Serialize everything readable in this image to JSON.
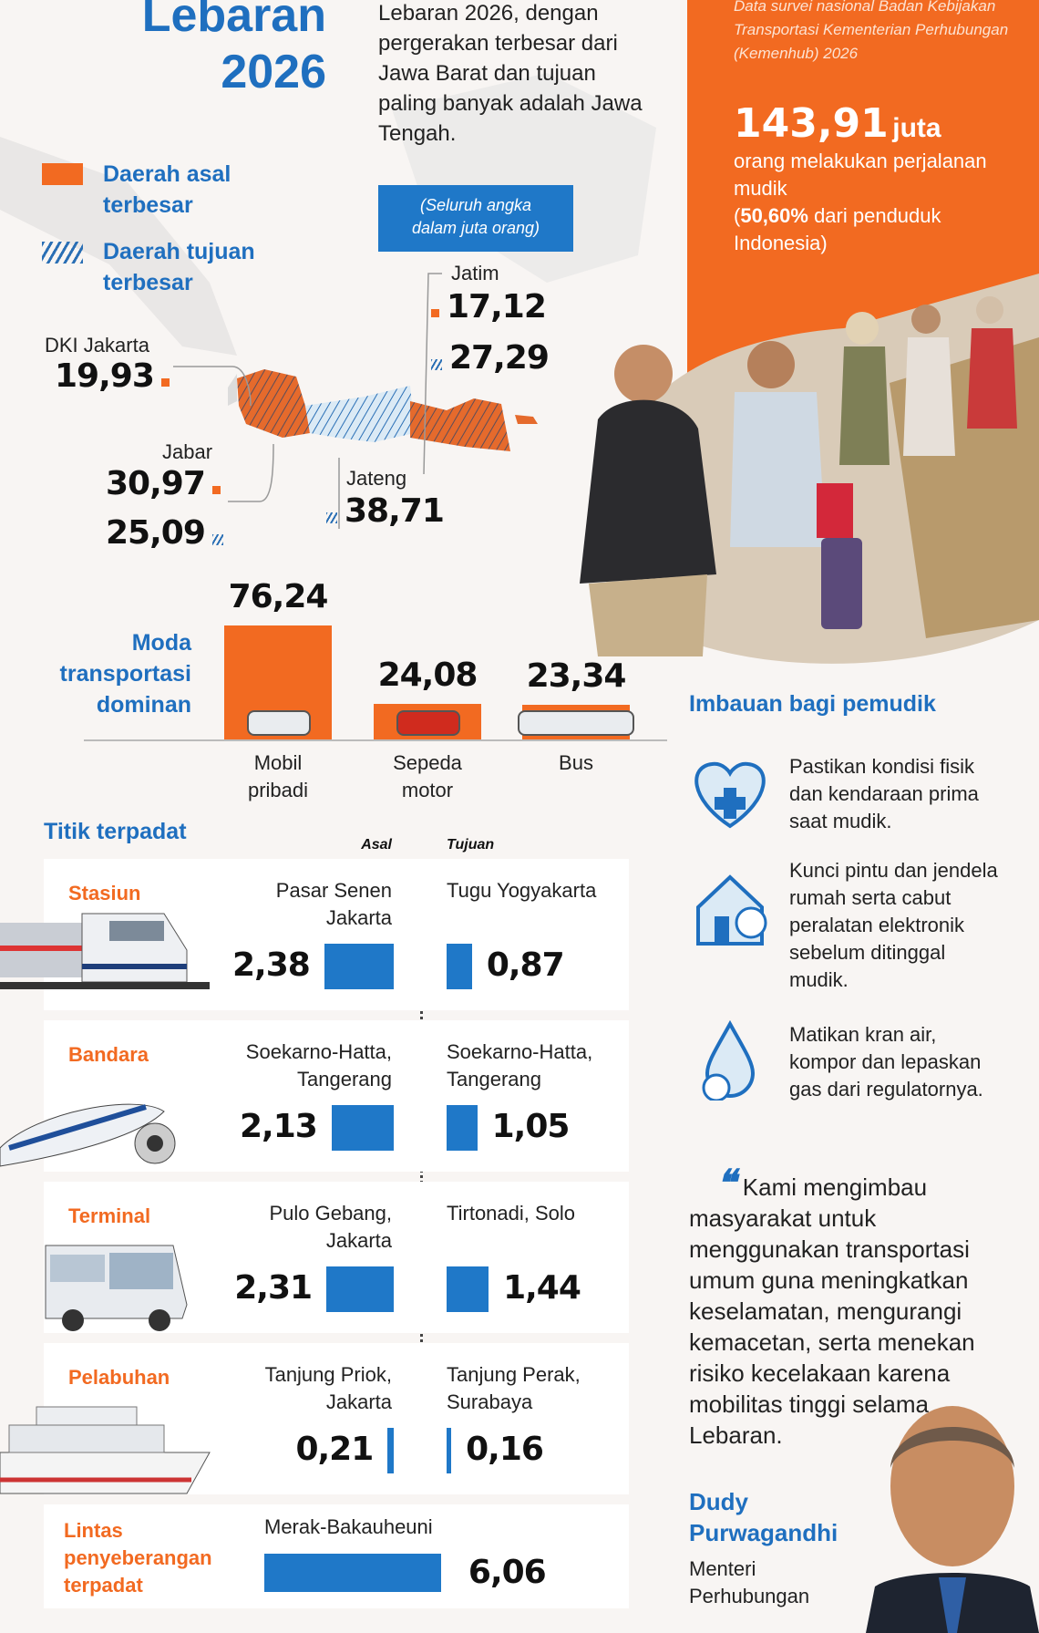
{
  "header": {
    "title_line1": "Lebaran",
    "title_line2": "2026",
    "intro": "Lebaran 2026, dengan pergerakan terbesar dari Jawa Barat dan tujuan paling banyak adalah Jawa Tengah."
  },
  "survey": {
    "source": "Data survei nasional Badan Kebijakan Transportasi Kementerian Perhubungan (Kemenhub) 2026",
    "total": "143,91",
    "unit": "juta",
    "desc1": "orang melakukan perjalanan mudik",
    "pct": "50,60%",
    "desc2_a": "(",
    "desc2_b": " dari penduduk Indonesia)"
  },
  "legend": {
    "origin": "Daerah asal terbesar",
    "destination": "Daerah tujuan terbesar",
    "note": "(Seluruh angka dalam juta orang)"
  },
  "colors": {
    "accent_blue": "#1f6fbf",
    "accent_orange": "#f26a21",
    "bar_blue": "#1f78c8"
  },
  "map": {
    "dki": {
      "name": "DKI Jakarta",
      "origin": "19,93"
    },
    "jabar": {
      "name": "Jabar",
      "origin": "30,97",
      "destination": "25,09"
    },
    "jateng": {
      "name": "Jateng",
      "destination": "38,71"
    },
    "jatim": {
      "name": "Jatim",
      "origin": "17,12",
      "destination": "27,29"
    }
  },
  "chart_data": {
    "type": "bar",
    "title": "Moda transportasi dominan",
    "categories": [
      "Mobil pribadi",
      "Sepeda motor",
      "Bus"
    ],
    "values": [
      76.24,
      24.08,
      23.34
    ],
    "labels": [
      "76,24",
      "24,08",
      "23,34"
    ],
    "icons": [
      "car-icon",
      "motorcycle-icon",
      "bus-icon"
    ]
  },
  "hubs": {
    "title": "Titik terpadat",
    "origin_header": "Asal",
    "dest_header": "Tujuan",
    "scale_unit": "juta orang",
    "rows": [
      {
        "category": "Stasiun",
        "icon": "train-icon",
        "origin": "Pasar Senen Jakarta",
        "origin_value": 2.38,
        "origin_label": "2,38",
        "dest": "Tugu Yogyakarta",
        "dest_value": 0.87,
        "dest_label": "0,87"
      },
      {
        "category": "Bandara",
        "icon": "airplane-icon",
        "origin": "Soekarno-Hatta, Tangerang",
        "origin_value": 2.13,
        "origin_label": "2,13",
        "dest": "Soekarno-Hatta, Tangerang",
        "dest_value": 1.05,
        "dest_label": "1,05"
      },
      {
        "category": "Terminal",
        "icon": "bus-icon",
        "origin": "Pulo Gebang, Jakarta",
        "origin_value": 2.31,
        "origin_label": "2,31",
        "dest": "Tirtonadi, Solo",
        "dest_value": 1.44,
        "dest_label": "1,44"
      },
      {
        "category": "Pelabuhan",
        "icon": "ship-icon",
        "origin": "Tanjung Priok, Jakarta",
        "origin_value": 0.21,
        "origin_label": "0,21",
        "dest": "Tanjung Perak, Surabaya",
        "dest_value": 0.16,
        "dest_label": "0,16"
      }
    ],
    "crossing": {
      "category": "Lintas penyeberangan terpadat",
      "route": "Merak-Bakauheuni",
      "value": 6.06,
      "label": "6,06"
    }
  },
  "advice": {
    "title": "Imbauan bagi pemudik",
    "items": [
      {
        "icon": "heart-health-icon",
        "text": "Pastikan kondisi fisik dan kendaraan prima saat mudik."
      },
      {
        "icon": "house-lock-icon",
        "text": "Kunci pintu dan jendela rumah serta cabut peralatan elektronik sebelum ditinggal mudik."
      },
      {
        "icon": "water-gas-icon",
        "text": "Matikan kran air, kompor dan lepaskan gas dari regulatornya."
      }
    ]
  },
  "quote": {
    "text": "Kami mengimbau masyarakat untuk menggunakan transportasi umum guna meningkatkan keselamatan, mengurangi kemacetan, serta menekan risiko kecelakaan karena mobilitas tinggi selama Lebaran.",
    "name": "Dudy Purwagandhi",
    "role": "Menteri Perhubungan"
  }
}
